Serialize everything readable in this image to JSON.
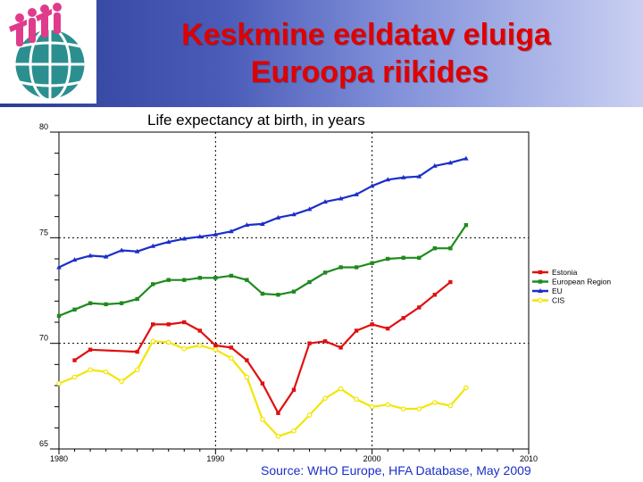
{
  "slide": {
    "title_line1": "Keskmine eeldatav eluiga",
    "title_line2": "Euroopa riikides"
  },
  "logo": {
    "icon": "who-globe-people-logo"
  },
  "colors": {
    "estonia": "#e01010",
    "european_region": "#1e8a1e",
    "eu": "#1a2fc8",
    "cis": "#f2e600",
    "title": "#e00000"
  },
  "chart_data": {
    "type": "line",
    "title": "Life expectancy at birth, in years",
    "source": "Source: WHO Europe, HFA Database, May 2009",
    "xlim": [
      1980,
      2010
    ],
    "ylim": [
      65,
      80
    ],
    "x_ticks": [
      1980,
      1990,
      2000,
      2010
    ],
    "y_ticks": [
      65,
      70,
      75,
      80
    ],
    "x_tick_labels": [
      "1980",
      "1990",
      "2000",
      "2010"
    ],
    "y_tick_labels": [
      "65",
      "70",
      "75",
      "80"
    ],
    "grid": "dashed at major ticks",
    "legend_position": "right",
    "series": [
      {
        "name": "Estonia",
        "x": [
          1981,
          1982,
          1985,
          1986,
          1987,
          1988,
          1989,
          1990,
          1991,
          1992,
          1993,
          1994,
          1995,
          1996,
          1997,
          1998,
          1999,
          2000,
          2001,
          2002,
          2003,
          2004,
          2005
        ],
        "y": [
          69.2,
          69.7,
          69.6,
          70.9,
          70.9,
          71.0,
          70.6,
          69.9,
          69.8,
          69.2,
          68.1,
          66.7,
          67.8,
          70.0,
          70.1,
          69.8,
          70.6,
          70.9,
          70.7,
          71.2,
          71.7,
          72.3,
          72.9
        ]
      },
      {
        "name": "European Region",
        "x": [
          1980,
          1981,
          1982,
          1983,
          1984,
          1985,
          1986,
          1987,
          1988,
          1989,
          1990,
          1991,
          1992,
          1993,
          1994,
          1995,
          1996,
          1997,
          1998,
          1999,
          2000,
          2001,
          2002,
          2003,
          2004,
          2005,
          2006
        ],
        "y": [
          71.3,
          71.6,
          71.9,
          71.85,
          71.9,
          72.1,
          72.8,
          73.0,
          73.0,
          73.1,
          73.1,
          73.2,
          73.0,
          72.35,
          72.3,
          72.45,
          72.9,
          73.35,
          73.6,
          73.6,
          73.8,
          74.0,
          74.05,
          74.05,
          74.5,
          74.5,
          75.6
        ]
      },
      {
        "name": "EU",
        "x": [
          1980,
          1981,
          1982,
          1983,
          1984,
          1985,
          1986,
          1987,
          1988,
          1989,
          1990,
          1991,
          1992,
          1993,
          1994,
          1995,
          1996,
          1997,
          1998,
          1999,
          2000,
          2001,
          2002,
          2003,
          2004,
          2005,
          2006
        ],
        "y": [
          73.6,
          73.95,
          74.15,
          74.1,
          74.4,
          74.35,
          74.6,
          74.8,
          74.95,
          75.05,
          75.15,
          75.3,
          75.6,
          75.65,
          75.95,
          76.1,
          76.35,
          76.7,
          76.85,
          77.05,
          77.45,
          77.75,
          77.85,
          77.9,
          78.4,
          78.55,
          78.75
        ]
      },
      {
        "name": "CIS",
        "x": [
          1980,
          1981,
          1982,
          1983,
          1984,
          1985,
          1986,
          1987,
          1988,
          1989,
          1990,
          1991,
          1992,
          1993,
          1994,
          1995,
          1996,
          1997,
          1998,
          1999,
          2000,
          2001,
          2002,
          2003,
          2004,
          2005,
          2006
        ],
        "y": [
          68.1,
          68.4,
          68.75,
          68.65,
          68.2,
          68.75,
          70.1,
          70.05,
          69.75,
          69.9,
          69.7,
          69.3,
          68.4,
          66.4,
          65.6,
          65.85,
          66.6,
          67.4,
          67.85,
          67.35,
          67.0,
          67.1,
          66.9,
          66.9,
          67.2,
          67.05,
          67.9
        ]
      }
    ]
  }
}
